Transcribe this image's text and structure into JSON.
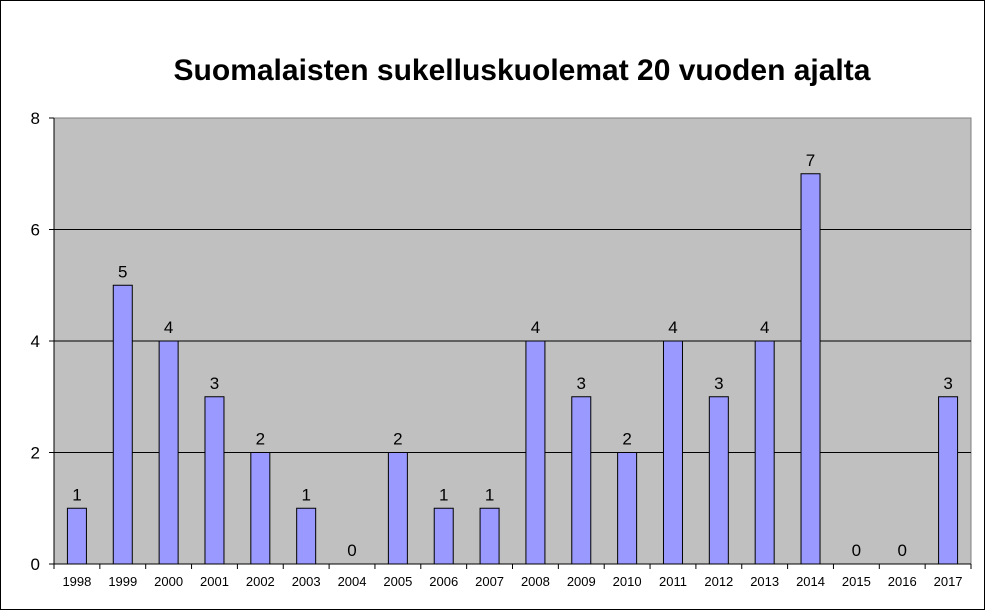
{
  "chart_data": {
    "type": "bar",
    "title": "Suomalaisten sukelluskuolemat 20 vuoden ajalta",
    "xlabel": "",
    "ylabel": "",
    "ylim": [
      0,
      8
    ],
    "yticks": [
      0,
      2,
      4,
      6,
      8
    ],
    "grid": true,
    "legend": "none",
    "categories": [
      "1998",
      "1999",
      "2000",
      "2001",
      "2002",
      "2003",
      "2004",
      "2005",
      "2006",
      "2007",
      "2008",
      "2009",
      "2010",
      "2011",
      "2012",
      "2013",
      "2014",
      "2015",
      "2016",
      "2017"
    ],
    "values": [
      1,
      5,
      4,
      3,
      2,
      1,
      0,
      2,
      1,
      1,
      4,
      3,
      2,
      4,
      3,
      4,
      7,
      0,
      0,
      3
    ],
    "colors": {
      "bar": "#9999ff",
      "plot_background": "#c0c0c0",
      "gridline": "#000000"
    }
  }
}
